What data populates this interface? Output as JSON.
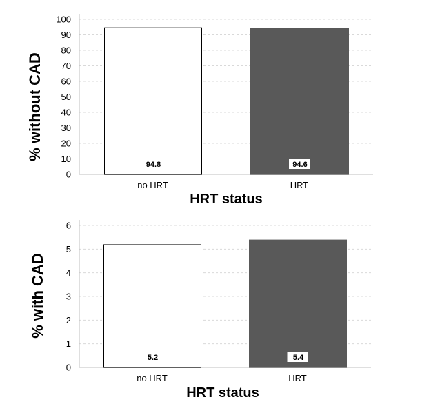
{
  "chart_data": [
    {
      "type": "bar",
      "categories": [
        "no HRT",
        "HRT"
      ],
      "values": [
        94.8,
        94.6
      ],
      "data_labels": [
        "94.8",
        "94.6"
      ],
      "colors": [
        "#ffffff",
        "#595959"
      ],
      "xlabel": "HRT status",
      "ylabel": "% without CAD",
      "ylim": [
        0,
        100
      ],
      "yticks": [
        0,
        10,
        20,
        30,
        40,
        50,
        60,
        70,
        80,
        90,
        100
      ],
      "grid": true
    },
    {
      "type": "bar",
      "categories": [
        "no HRT",
        "HRT"
      ],
      "values": [
        5.2,
        5.4
      ],
      "data_labels": [
        "5.2",
        "5.4"
      ],
      "colors": [
        "#ffffff",
        "#595959"
      ],
      "xlabel": "HRT status",
      "ylabel": "% with CAD",
      "ylim": [
        0,
        6
      ],
      "yticks": [
        0,
        1,
        2,
        3,
        4,
        5,
        6
      ],
      "grid": true
    }
  ]
}
